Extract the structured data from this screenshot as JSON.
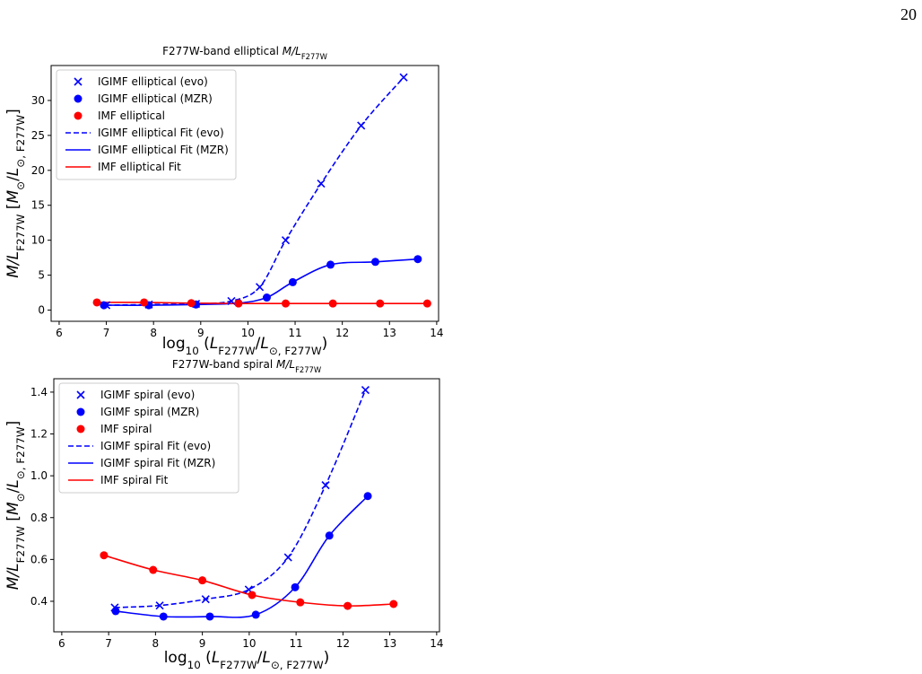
{
  "page_number": "20",
  "chart_data": [
    {
      "type": "line",
      "title": [
        "F277W-band elliptical ",
        "M/L",
        "F277W"
      ],
      "xlabel": [
        "log",
        "10",
        " (",
        "L",
        "F277W",
        "/",
        "L",
        "⊙, F277W",
        ")"
      ],
      "ylabel": [
        "M/L",
        "F277W",
        " [",
        "M",
        "⊙",
        "/",
        "L",
        "⊙, F277W",
        "]"
      ],
      "xlim": [
        5.83,
        14.04
      ],
      "ylim": [
        -1.6,
        35
      ],
      "xticks": [
        6,
        7,
        8,
        9,
        10,
        11,
        12,
        13,
        14
      ],
      "yticks": [
        0,
        5,
        10,
        15,
        20,
        25,
        30
      ],
      "legend": "upper-left",
      "series": [
        {
          "name": "IGIMF elliptical (evo)",
          "color": "#0000ff",
          "marker": "x",
          "x": [
            7.0,
            7.9,
            8.9,
            9.65,
            10.25,
            10.8,
            11.55,
            12.4,
            13.3
          ],
          "values": [
            0.7,
            0.8,
            0.9,
            1.3,
            3.3,
            10,
            18.1,
            26.4,
            33.3
          ]
        },
        {
          "name": "IGIMF elliptical (MZR)",
          "color": "#0000ff",
          "marker": "o",
          "x": [
            6.95,
            7.9,
            8.9,
            9.8,
            10.4,
            10.95,
            11.75,
            12.7,
            13.6
          ],
          "values": [
            0.7,
            0.7,
            0.8,
            1.0,
            1.8,
            4.0,
            6.5,
            6.9,
            7.3
          ]
        },
        {
          "name": "IMF elliptical",
          "color": "#ff0000",
          "marker": "o",
          "x": [
            6.8,
            7.8,
            8.8,
            9.8,
            10.8,
            11.8,
            12.8,
            13.8
          ],
          "values": [
            1.1,
            1.1,
            1.0,
            0.95,
            0.95,
            0.95,
            0.95,
            0.95
          ]
        },
        {
          "name": "IGIMF elliptical Fit (evo)",
          "color": "#0000ff",
          "linestyle": "dashed",
          "x": [
            7.0,
            7.9,
            8.9,
            9.65,
            10.25,
            10.8,
            11.55,
            12.4,
            13.3
          ],
          "values": [
            0.7,
            0.8,
            0.9,
            1.3,
            3.3,
            10,
            18.1,
            26.4,
            33.3
          ]
        },
        {
          "name": "IGIMF elliptical Fit (MZR)",
          "color": "#0000ff",
          "linestyle": "solid",
          "x": [
            6.95,
            7.9,
            8.9,
            9.8,
            10.4,
            10.95,
            11.75,
            12.7,
            13.6
          ],
          "values": [
            0.7,
            0.7,
            0.8,
            1.0,
            1.8,
            4.0,
            6.5,
            6.9,
            7.3
          ]
        },
        {
          "name": "IMF elliptical Fit",
          "color": "#ff0000",
          "linestyle": "solid",
          "x": [
            6.8,
            7.8,
            8.8,
            9.8,
            10.8,
            11.8,
            12.8,
            13.8
          ],
          "values": [
            1.1,
            1.1,
            1.0,
            0.95,
            0.95,
            0.95,
            0.95,
            0.95
          ]
        }
      ]
    },
    {
      "type": "line",
      "title": [
        "F277W-band spiral ",
        "M/L",
        "F277W"
      ],
      "xlabel": [
        "log",
        "10",
        " (",
        "L",
        "F277W",
        "/",
        "L",
        "⊙, F277W",
        ")"
      ],
      "ylabel": [
        "M/L",
        "F277W",
        " [",
        "M",
        "⊙",
        "/",
        "L",
        "⊙, F277W",
        "]"
      ],
      "xlim": [
        5.83,
        14.06
      ],
      "ylim": [
        0.254,
        1.464
      ],
      "xticks": [
        6,
        7,
        8,
        9,
        10,
        11,
        12,
        13,
        14
      ],
      "yticks": [
        0.4,
        0.6,
        0.8,
        {
          "value": 1,
          "label": "1.0"
        },
        1.2,
        1.4
      ],
      "legend": "upper-left",
      "series": [
        {
          "name": "IGIMF spiral (evo)",
          "color": "#0000ff",
          "marker": "x",
          "x": [
            7.13,
            8.09,
            9.07,
            9.99,
            10.83,
            11.63,
            12.48
          ],
          "values": [
            0.37,
            0.38,
            0.41,
            0.456,
            0.61,
            0.955,
            1.41
          ]
        },
        {
          "name": "IGIMF spiral (MZR)",
          "color": "#0000ff",
          "marker": "o",
          "x": [
            7.15,
            8.17,
            9.16,
            10.14,
            10.98,
            11.71,
            12.53
          ],
          "values": [
            0.353,
            0.327,
            0.327,
            0.336,
            0.467,
            0.714,
            0.903
          ]
        },
        {
          "name": "IMF spiral",
          "color": "#ff0000",
          "marker": "o",
          "x": [
            6.9,
            7.95,
            9.0,
            10.06,
            11.09,
            12.1,
            13.08
          ],
          "values": [
            0.62,
            0.55,
            0.5,
            0.43,
            0.395,
            0.378,
            0.387
          ]
        },
        {
          "name": "IGIMF spiral Fit (evo)",
          "color": "#0000ff",
          "linestyle": "dashed",
          "x": [
            7.13,
            8.09,
            9.07,
            9.99,
            10.83,
            11.63,
            12.48
          ],
          "values": [
            0.37,
            0.38,
            0.41,
            0.456,
            0.61,
            0.955,
            1.41
          ]
        },
        {
          "name": "IGIMF spiral Fit (MZR)",
          "color": "#0000ff",
          "linestyle": "solid",
          "x": [
            7.15,
            8.17,
            9.16,
            10.14,
            10.98,
            11.71,
            12.53
          ],
          "values": [
            0.353,
            0.327,
            0.327,
            0.336,
            0.467,
            0.714,
            0.903
          ]
        },
        {
          "name": "IMF spiral Fit",
          "color": "#ff0000",
          "linestyle": "solid",
          "x": [
            6.9,
            7.95,
            9.0,
            10.06,
            11.09,
            12.1,
            13.08
          ],
          "values": [
            0.62,
            0.55,
            0.5,
            0.43,
            0.395,
            0.378,
            0.387
          ]
        }
      ]
    }
  ]
}
